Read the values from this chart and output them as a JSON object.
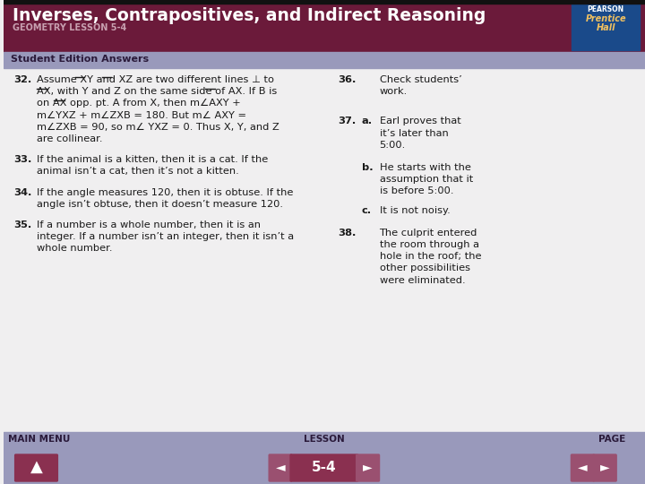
{
  "title": "Inverses, Contrapositives, and Indirect Reasoning",
  "subtitle": "GEOMETRY LESSON 5-4",
  "header_bg": "#6b1a3a",
  "header_text_color": "#ffffff",
  "subtitle_color": "#c8a0b0",
  "banner_bg": "#9999bb",
  "banner_text": "Student Edition Answers",
  "banner_text_color": "#2a1a3a",
  "body_bg": "#f0eff0",
  "footer_bg": "#9999bb",
  "footer_text_color": "#2a1a3a",
  "nav_button_bg": "#8a3050",
  "nav_arrow_bg": "#9a5070",
  "pearson_box_bg": "#1a4a8a",
  "text_color": "#1a1a1a",
  "left_col": [
    {
      "num": "32.",
      "lines": [
        "Assume XY and XZ are two different lines ⊥ to",
        "AX, with Y and Z on the same side of AX. If B is",
        "on AX opp. pt. A from X, then m∠AXY +",
        "m∠YXZ + m∠ZXB = 180. But m∠ AXY =",
        "m∠ZXB = 90, so m∠ YXZ = 0. Thus X, Y, and Z",
        "are collinear."
      ]
    },
    {
      "num": "33.",
      "lines": [
        "If the animal is a kitten, then it is a cat. If the",
        "animal isn’t a cat, then it’s not a kitten."
      ]
    },
    {
      "num": "34.",
      "lines": [
        "If the angle measures 120, then it is obtuse. If the",
        "angle isn’t obtuse, then it doesn’t measure 120."
      ]
    },
    {
      "num": "35.",
      "lines": [
        "If a number is a whole number, then it is an",
        "integer. If a number isn’t an integer, then it isn’t a",
        "whole number."
      ]
    }
  ],
  "right_col": [
    {
      "num": "36.",
      "sub": "",
      "lines": [
        "Check students’",
        "work."
      ]
    },
    {
      "num": "37.",
      "sub": "a.",
      "lines": [
        "Earl proves that",
        "it’s later than",
        "5:00."
      ]
    },
    {
      "num": "",
      "sub": "b.",
      "lines": [
        "He starts with the",
        "assumption that it",
        "is before 5:00."
      ]
    },
    {
      "num": "",
      "sub": "c.",
      "lines": [
        "It is not noisy."
      ]
    },
    {
      "num": "38.",
      "sub": "",
      "lines": [
        "The culprit entered",
        "the room through a",
        "hole in the roof; the",
        "other possibilities",
        "were eliminated."
      ]
    }
  ]
}
